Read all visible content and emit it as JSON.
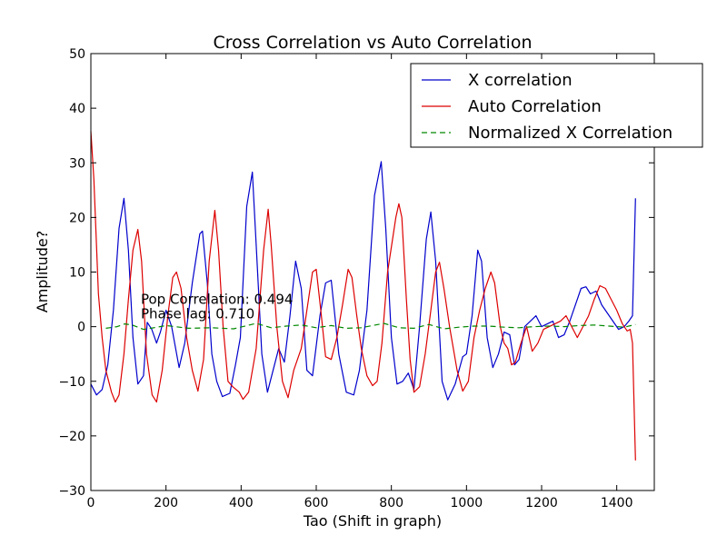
{
  "chart_data": {
    "type": "line",
    "title": "Cross Correlation vs Auto Correlation",
    "xlabel": "Tao (Shift in graph)",
    "ylabel": "Amplitude?",
    "xlim": [
      0,
      1500
    ],
    "ylim": [
      -30,
      50
    ],
    "xticks": [
      0,
      200,
      400,
      600,
      800,
      1000,
      1200,
      1400
    ],
    "yticks": [
      -30,
      -20,
      -10,
      0,
      10,
      20,
      30,
      40,
      50
    ],
    "xtick_labels": [
      "0",
      "200",
      "400",
      "600",
      "800",
      "1000",
      "1200",
      "1400"
    ],
    "ytick_labels": [
      "−30",
      "−20",
      "−10",
      "0",
      "10",
      "20",
      "30",
      "40",
      "50"
    ],
    "grid": false,
    "legend_position": "top-right",
    "annotations": [
      {
        "text": "Pop Correlation: 0.494",
        "x": 133,
        "y": 4.2
      },
      {
        "text": "Phase lag: 0.710",
        "x": 133,
        "y": 1.5
      }
    ],
    "series": [
      {
        "name": "X correlation",
        "color": "#0000cc",
        "style": "solid",
        "points": [
          [
            0,
            -10.5
          ],
          [
            15,
            -12.5
          ],
          [
            30,
            -11.5
          ],
          [
            45,
            -7
          ],
          [
            60,
            3
          ],
          [
            75,
            18
          ],
          [
            88,
            23.5
          ],
          [
            100,
            14
          ],
          [
            112,
            -2
          ],
          [
            125,
            -10.5
          ],
          [
            140,
            -9
          ],
          [
            150,
            0.8
          ],
          [
            162,
            -0.5
          ],
          [
            175,
            -3
          ],
          [
            185,
            -1
          ],
          [
            200,
            3
          ],
          [
            215,
            0
          ],
          [
            235,
            -7.5
          ],
          [
            250,
            -3
          ],
          [
            270,
            8
          ],
          [
            290,
            17
          ],
          [
            297,
            17.5
          ],
          [
            310,
            8
          ],
          [
            322,
            -5
          ],
          [
            335,
            -10
          ],
          [
            350,
            -12.8
          ],
          [
            370,
            -12.2
          ],
          [
            385,
            -7
          ],
          [
            398,
            -2
          ],
          [
            415,
            22
          ],
          [
            430,
            28.3
          ],
          [
            440,
            15
          ],
          [
            455,
            -5
          ],
          [
            470,
            -12
          ],
          [
            485,
            -8
          ],
          [
            500,
            -4
          ],
          [
            515,
            -6.5
          ],
          [
            530,
            2
          ],
          [
            545,
            12
          ],
          [
            560,
            7
          ],
          [
            575,
            -8
          ],
          [
            590,
            -9
          ],
          [
            610,
            2
          ],
          [
            625,
            8
          ],
          [
            640,
            8.5
          ],
          [
            660,
            -5
          ],
          [
            680,
            -12
          ],
          [
            700,
            -12.5
          ],
          [
            715,
            -8
          ],
          [
            735,
            3
          ],
          [
            755,
            24
          ],
          [
            773,
            30.2
          ],
          [
            785,
            18
          ],
          [
            800,
            -2
          ],
          [
            815,
            -10.5
          ],
          [
            830,
            -10
          ],
          [
            845,
            -8.5
          ],
          [
            860,
            -11.5
          ],
          [
            875,
            0
          ],
          [
            893,
            16
          ],
          [
            905,
            21
          ],
          [
            918,
            12
          ],
          [
            935,
            -10
          ],
          [
            950,
            -13.4
          ],
          [
            970,
            -10.5
          ],
          [
            990,
            -5.5
          ],
          [
            1000,
            -5
          ],
          [
            1015,
            2
          ],
          [
            1030,
            14
          ],
          [
            1040,
            12
          ],
          [
            1055,
            -2
          ],
          [
            1070,
            -7.5
          ],
          [
            1085,
            -5
          ],
          [
            1100,
            -1
          ],
          [
            1115,
            -1.5
          ],
          [
            1128,
            -7
          ],
          [
            1140,
            -6
          ],
          [
            1155,
            0
          ],
          [
            1170,
            1
          ],
          [
            1185,
            2
          ],
          [
            1200,
            0
          ],
          [
            1215,
            0.5
          ],
          [
            1230,
            1
          ],
          [
            1245,
            -2
          ],
          [
            1260,
            -1.5
          ],
          [
            1275,
            1
          ],
          [
            1290,
            4
          ],
          [
            1305,
            7
          ],
          [
            1318,
            7.3
          ],
          [
            1330,
            6
          ],
          [
            1345,
            6.5
          ],
          [
            1360,
            4
          ],
          [
            1375,
            2.5
          ],
          [
            1390,
            1
          ],
          [
            1405,
            -0.5
          ],
          [
            1420,
            0
          ],
          [
            1432,
            1
          ],
          [
            1442,
            2
          ],
          [
            1450,
            23.5
          ]
        ]
      },
      {
        "name": "Auto Correlation",
        "color": "#dd0000",
        "style": "solid",
        "points": [
          [
            0,
            35.8
          ],
          [
            8,
            27
          ],
          [
            20,
            6
          ],
          [
            30,
            -2
          ],
          [
            40,
            -8
          ],
          [
            55,
            -12
          ],
          [
            65,
            -13.8
          ],
          [
            75,
            -12.5
          ],
          [
            88,
            -5
          ],
          [
            100,
            5
          ],
          [
            112,
            14
          ],
          [
            125,
            17.8
          ],
          [
            135,
            12
          ],
          [
            148,
            -5
          ],
          [
            163,
            -12.5
          ],
          [
            175,
            -13.8
          ],
          [
            190,
            -8
          ],
          [
            205,
            2
          ],
          [
            218,
            9
          ],
          [
            228,
            10
          ],
          [
            240,
            7
          ],
          [
            255,
            -2
          ],
          [
            270,
            -8
          ],
          [
            285,
            -11.8
          ],
          [
            300,
            -6
          ],
          [
            315,
            12
          ],
          [
            330,
            21.3
          ],
          [
            340,
            14
          ],
          [
            352,
            0
          ],
          [
            365,
            -10
          ],
          [
            378,
            -11
          ],
          [
            395,
            -12
          ],
          [
            405,
            -13.3
          ],
          [
            420,
            -12
          ],
          [
            440,
            -4
          ],
          [
            460,
            14
          ],
          [
            472,
            21.5
          ],
          [
            480,
            15
          ],
          [
            495,
            0
          ],
          [
            510,
            -10
          ],
          [
            525,
            -13
          ],
          [
            540,
            -8
          ],
          [
            560,
            -4
          ],
          [
            575,
            3
          ],
          [
            590,
            10
          ],
          [
            600,
            10.5
          ],
          [
            612,
            3
          ],
          [
            625,
            -5.5
          ],
          [
            640,
            -6
          ],
          [
            655,
            -2
          ],
          [
            670,
            4
          ],
          [
            685,
            10.5
          ],
          [
            695,
            9
          ],
          [
            708,
            2
          ],
          [
            720,
            -4
          ],
          [
            735,
            -9
          ],
          [
            750,
            -10.8
          ],
          [
            762,
            -10
          ],
          [
            775,
            -3
          ],
          [
            790,
            10
          ],
          [
            812,
            20
          ],
          [
            820,
            22.5
          ],
          [
            828,
            20
          ],
          [
            840,
            5
          ],
          [
            850,
            -6
          ],
          [
            860,
            -12
          ],
          [
            875,
            -11
          ],
          [
            890,
            -5
          ],
          [
            905,
            3
          ],
          [
            918,
            10
          ],
          [
            928,
            11.8
          ],
          [
            940,
            7
          ],
          [
            955,
            0
          ],
          [
            975,
            -8
          ],
          [
            990,
            -11.8
          ],
          [
            1005,
            -10
          ],
          [
            1020,
            -2
          ],
          [
            1035,
            3
          ],
          [
            1050,
            7
          ],
          [
            1065,
            10
          ],
          [
            1075,
            8
          ],
          [
            1090,
            0
          ],
          [
            1100,
            -3
          ],
          [
            1110,
            -4
          ],
          [
            1120,
            -7
          ],
          [
            1130,
            -6.5
          ],
          [
            1145,
            -3
          ],
          [
            1160,
            0
          ],
          [
            1175,
            -4.5
          ],
          [
            1190,
            -3
          ],
          [
            1205,
            -0.5
          ],
          [
            1220,
            0
          ],
          [
            1235,
            0.5
          ],
          [
            1250,
            1
          ],
          [
            1265,
            2
          ],
          [
            1280,
            0
          ],
          [
            1295,
            -2
          ],
          [
            1310,
            0
          ],
          [
            1325,
            2
          ],
          [
            1340,
            5
          ],
          [
            1355,
            7.5
          ],
          [
            1370,
            7
          ],
          [
            1385,
            5
          ],
          [
            1400,
            3
          ],
          [
            1415,
            0.5
          ],
          [
            1428,
            -0.8
          ],
          [
            1436,
            -0.5
          ],
          [
            1442,
            -3
          ],
          [
            1450,
            -24.5
          ]
        ]
      },
      {
        "name": "Normalized X Correlation",
        "color": "#008800",
        "style": "dashed",
        "points": [
          [
            40,
            -0.3
          ],
          [
            70,
            0
          ],
          [
            90,
            0.5
          ],
          [
            110,
            0.3
          ],
          [
            140,
            -0.5
          ],
          [
            160,
            -0.3
          ],
          [
            200,
            0.2
          ],
          [
            260,
            -0.3
          ],
          [
            320,
            -0.2
          ],
          [
            380,
            -0.4
          ],
          [
            440,
            0.6
          ],
          [
            480,
            -0.2
          ],
          [
            520,
            0.1
          ],
          [
            560,
            0.3
          ],
          [
            600,
            -0.2
          ],
          [
            640,
            0.2
          ],
          [
            680,
            -0.3
          ],
          [
            720,
            -0.2
          ],
          [
            780,
            0.6
          ],
          [
            820,
            -0.2
          ],
          [
            860,
            -0.3
          ],
          [
            900,
            0.4
          ],
          [
            940,
            -0.4
          ],
          [
            980,
            -0.1
          ],
          [
            1020,
            0.1
          ],
          [
            1060,
            0.1
          ],
          [
            1100,
            -0.1
          ],
          [
            1140,
            -0.2
          ],
          [
            1180,
            0
          ],
          [
            1220,
            0.1
          ],
          [
            1260,
            0
          ],
          [
            1300,
            0.2
          ],
          [
            1340,
            0.3
          ],
          [
            1380,
            0.1
          ],
          [
            1420,
            -0.1
          ],
          [
            1450,
            0.4
          ]
        ]
      }
    ]
  }
}
